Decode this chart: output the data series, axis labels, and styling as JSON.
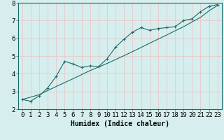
{
  "title": "",
  "xlabel": "Humidex (Indice chaleur)",
  "ylabel": "",
  "xlim": [
    -0.5,
    23.5
  ],
  "ylim": [
    2,
    8
  ],
  "xticks": [
    0,
    1,
    2,
    3,
    4,
    5,
    6,
    7,
    8,
    9,
    10,
    11,
    12,
    13,
    14,
    15,
    16,
    17,
    18,
    19,
    20,
    21,
    22,
    23
  ],
  "yticks": [
    2,
    3,
    4,
    5,
    6,
    7,
    8
  ],
  "bg_color": "#d6eeed",
  "line_color": "#1a6b6b",
  "grid_color": "#e8c8c8",
  "data_line": [
    2.55,
    2.45,
    2.75,
    3.2,
    3.85,
    4.7,
    4.55,
    4.35,
    4.45,
    4.4,
    4.85,
    5.5,
    5.95,
    6.35,
    6.6,
    6.45,
    6.55,
    6.6,
    6.65,
    7.0,
    7.1,
    7.5,
    7.8,
    7.9
  ],
  "ref_line": [
    2.55,
    2.68,
    2.82,
    3.05,
    3.28,
    3.5,
    3.72,
    3.95,
    4.18,
    4.38,
    4.58,
    4.8,
    5.02,
    5.25,
    5.48,
    5.72,
    5.95,
    6.18,
    6.42,
    6.65,
    6.92,
    7.18,
    7.55,
    7.85
  ],
  "fontsize_xlabel": 7,
  "fontsize_ticks": 6.5,
  "tick_color": "#1a6b6b"
}
